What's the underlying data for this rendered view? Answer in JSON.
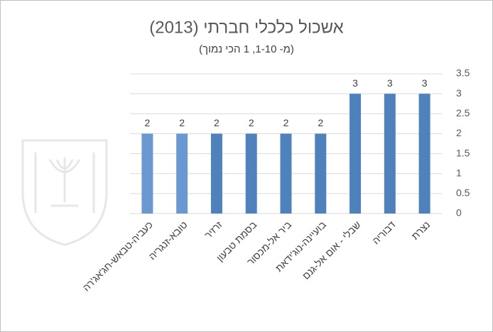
{
  "chart_data": {
    "type": "bar",
    "title": "אשכול כלכלי חברתי (2013)",
    "subtitle": "(מ- 1-10, 1 הכי נמוך)",
    "categories": [
      "כעביה-טבאש-חג'אג'רה",
      "טובא-זנגריה",
      "זרזיר",
      "בסמת טבעון",
      "ביר אל-מכסור",
      "בועיינה-נוג'ידאת",
      "שבלי - אום אל-גנם",
      "דבוריה",
      "נצרת"
    ],
    "values": [
      2,
      2,
      2,
      2,
      2,
      2,
      3,
      3,
      3
    ],
    "colors": [
      "#6b98d0",
      "#6b98d0",
      "#4f81bd",
      "#4f81bd",
      "#4f81bd",
      "#4f81bd",
      "#4f81bd",
      "#4f81bd",
      "#4f81bd"
    ],
    "ylim": [
      0,
      3.5
    ],
    "yticks": [
      0,
      0.5,
      1,
      1.5,
      2,
      2.5,
      3,
      3.5
    ],
    "grid": true,
    "y_axis_side": "right"
  }
}
